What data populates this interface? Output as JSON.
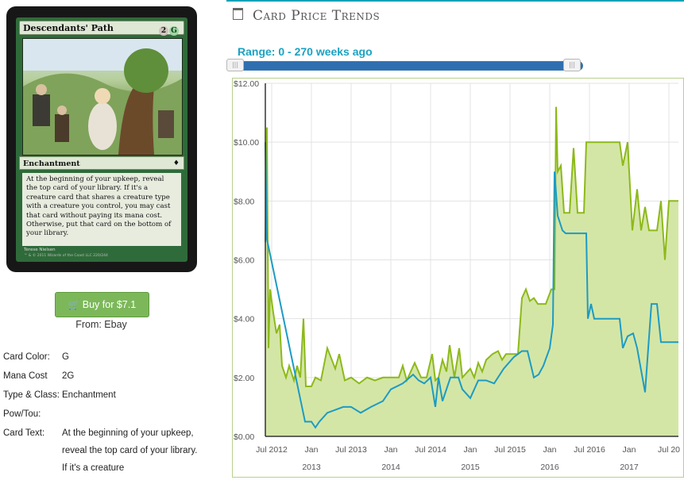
{
  "card": {
    "name": "Descendants' Path",
    "mana_cost_symbols": [
      "2",
      "G"
    ],
    "type_line": "Enchantment",
    "rules_text": "At the beginning of your upkeep, reveal the top card of your library. If it's a creature card that shares a creature type with a creature you control, you may cast that card without paying its mana cost. Otherwise, put that card on the bottom of your library.",
    "artist": "Terese Nielsen",
    "copyright": "™ & © 2011 Wizards of the Coast LLC 220/244"
  },
  "buy": {
    "label": "Buy for $7.1",
    "icon": "shopping-cart-icon",
    "color": "#7cb85a",
    "source": "From: Ebay"
  },
  "properties": [
    {
      "label": "Card Color:",
      "value": "G"
    },
    {
      "label": "Mana Cost",
      "value": "2G"
    },
    {
      "label": "Type & Class:",
      "value": "Enchantment"
    },
    {
      "label": "Pow/Tou:",
      "value": ""
    },
    {
      "label": "Card Text:",
      "value": "At the beginning of your upkeep, reveal the top card of your library. If it's a creature"
    }
  ],
  "trends": {
    "title": "Card Price Trends",
    "icon": "calendar-icon",
    "accent": "#12a3b8",
    "range_label": "Range: 0 - 270 weeks ago",
    "range_start_fraction": 0.0,
    "range_end_fraction": 1.0
  },
  "chart_data": {
    "type": "area",
    "x_unit": "years",
    "ylim": [
      0,
      12
    ],
    "xlim": [
      2012.42,
      2017.62
    ],
    "y_ticks": [
      "$0.00",
      "$2.00",
      "$4.00",
      "$6.00",
      "$8.00",
      "$10.00",
      "$12.00"
    ],
    "y_tick_values": [
      0,
      2,
      4,
      6,
      8,
      10,
      12
    ],
    "x_ticks": [
      {
        "x": 2012.5,
        "label": "Jul 2012"
      },
      {
        "x": 2013.0,
        "label": "Jan"
      },
      {
        "x": 2013.5,
        "label": "Jul 2013"
      },
      {
        "x": 2014.0,
        "label": "Jan"
      },
      {
        "x": 2014.5,
        "label": "Jul 2014"
      },
      {
        "x": 2015.0,
        "label": "Jan"
      },
      {
        "x": 2015.5,
        "label": "Jul 2015"
      },
      {
        "x": 2016.0,
        "label": "Jan"
      },
      {
        "x": 2016.5,
        "label": "Jul 2016"
      },
      {
        "x": 2017.0,
        "label": "Jan"
      },
      {
        "x": 2017.5,
        "label": "Jul 20"
      }
    ],
    "year_labels": [
      {
        "x": 2013.0,
        "label": "2013"
      },
      {
        "x": 2014.0,
        "label": "2014"
      },
      {
        "x": 2015.0,
        "label": "2015"
      },
      {
        "x": 2016.0,
        "label": "2016"
      },
      {
        "x": 2017.0,
        "label": "2017"
      }
    ],
    "grid": true,
    "series": [
      {
        "color": "#8db91a",
        "fill": "#d4e6a6",
        "points": [
          [
            2012.42,
            6.6
          ],
          [
            2012.44,
            10.5
          ],
          [
            2012.46,
            3.0
          ],
          [
            2012.48,
            5.0
          ],
          [
            2012.52,
            4.2
          ],
          [
            2012.56,
            3.5
          ],
          [
            2012.6,
            3.8
          ],
          [
            2012.63,
            2.4
          ],
          [
            2012.68,
            2.0
          ],
          [
            2012.72,
            2.4
          ],
          [
            2012.78,
            1.9
          ],
          [
            2012.82,
            2.4
          ],
          [
            2012.86,
            2.0
          ],
          [
            2012.9,
            4.0
          ],
          [
            2012.93,
            1.7
          ],
          [
            2013.0,
            1.7
          ],
          [
            2013.05,
            2.0
          ],
          [
            2013.12,
            1.9
          ],
          [
            2013.2,
            3.0
          ],
          [
            2013.3,
            2.3
          ],
          [
            2013.35,
            2.8
          ],
          [
            2013.42,
            1.9
          ],
          [
            2013.5,
            2.0
          ],
          [
            2013.6,
            1.8
          ],
          [
            2013.7,
            2.0
          ],
          [
            2013.8,
            1.9
          ],
          [
            2013.9,
            2.0
          ],
          [
            2014.0,
            2.0
          ],
          [
            2014.1,
            2.0
          ],
          [
            2014.15,
            2.4
          ],
          [
            2014.2,
            1.9
          ],
          [
            2014.3,
            2.5
          ],
          [
            2014.38,
            2.0
          ],
          [
            2014.45,
            2.0
          ],
          [
            2014.52,
            2.8
          ],
          [
            2014.56,
            1.9
          ],
          [
            2014.6,
            2.0
          ],
          [
            2014.65,
            2.6
          ],
          [
            2014.7,
            2.2
          ],
          [
            2014.74,
            3.1
          ],
          [
            2014.8,
            2.0
          ],
          [
            2014.86,
            3.0
          ],
          [
            2014.9,
            2.0
          ],
          [
            2015.0,
            2.3
          ],
          [
            2015.05,
            2.0
          ],
          [
            2015.1,
            2.5
          ],
          [
            2015.15,
            2.2
          ],
          [
            2015.2,
            2.6
          ],
          [
            2015.28,
            2.8
          ],
          [
            2015.35,
            2.9
          ],
          [
            2015.4,
            2.6
          ],
          [
            2015.45,
            2.8
          ],
          [
            2015.5,
            2.8
          ],
          [
            2015.6,
            2.8
          ],
          [
            2015.65,
            4.7
          ],
          [
            2015.7,
            5.0
          ],
          [
            2015.75,
            4.6
          ],
          [
            2015.8,
            4.7
          ],
          [
            2015.85,
            4.5
          ],
          [
            2015.9,
            4.5
          ],
          [
            2015.95,
            4.5
          ],
          [
            2016.02,
            5.0
          ],
          [
            2016.06,
            5.0
          ],
          [
            2016.08,
            11.2
          ],
          [
            2016.1,
            9.0
          ],
          [
            2016.14,
            9.2
          ],
          [
            2016.18,
            7.6
          ],
          [
            2016.25,
            7.6
          ],
          [
            2016.3,
            9.8
          ],
          [
            2016.35,
            7.6
          ],
          [
            2016.43,
            7.6
          ],
          [
            2016.46,
            10.0
          ],
          [
            2016.6,
            10.0
          ],
          [
            2016.75,
            10.0
          ],
          [
            2016.88,
            10.0
          ],
          [
            2016.92,
            9.2
          ],
          [
            2016.98,
            10.0
          ],
          [
            2017.04,
            7.0
          ],
          [
            2017.1,
            8.4
          ],
          [
            2017.15,
            7.0
          ],
          [
            2017.2,
            7.8
          ],
          [
            2017.25,
            7.0
          ],
          [
            2017.35,
            7.0
          ],
          [
            2017.4,
            8.0
          ],
          [
            2017.45,
            6.0
          ],
          [
            2017.5,
            8.0
          ],
          [
            2017.62,
            8.0
          ]
        ]
      },
      {
        "color": "#1d9bc4",
        "points": [
          [
            2012.42,
            10.0
          ],
          [
            2012.44,
            6.7
          ],
          [
            2012.92,
            0.5
          ],
          [
            2013.0,
            0.5
          ],
          [
            2013.05,
            0.3
          ],
          [
            2013.1,
            0.5
          ],
          [
            2013.2,
            0.8
          ],
          [
            2013.4,
            1.0
          ],
          [
            2013.5,
            1.0
          ],
          [
            2013.62,
            0.8
          ],
          [
            2013.75,
            1.0
          ],
          [
            2013.9,
            1.2
          ],
          [
            2014.0,
            1.6
          ],
          [
            2014.15,
            1.8
          ],
          [
            2014.28,
            2.1
          ],
          [
            2014.35,
            1.9
          ],
          [
            2014.42,
            1.8
          ],
          [
            2014.5,
            2.0
          ],
          [
            2014.56,
            1.0
          ],
          [
            2014.6,
            2.0
          ],
          [
            2014.65,
            1.2
          ],
          [
            2014.75,
            2.0
          ],
          [
            2014.85,
            2.0
          ],
          [
            2014.9,
            1.6
          ],
          [
            2015.0,
            1.3
          ],
          [
            2015.1,
            1.9
          ],
          [
            2015.2,
            1.9
          ],
          [
            2015.3,
            1.8
          ],
          [
            2015.42,
            2.3
          ],
          [
            2015.55,
            2.7
          ],
          [
            2015.65,
            2.9
          ],
          [
            2015.72,
            2.9
          ],
          [
            2015.8,
            2.0
          ],
          [
            2015.86,
            2.1
          ],
          [
            2015.92,
            2.4
          ],
          [
            2016.0,
            3.0
          ],
          [
            2016.04,
            3.8
          ],
          [
            2016.06,
            9.0
          ],
          [
            2016.1,
            7.5
          ],
          [
            2016.16,
            7.0
          ],
          [
            2016.2,
            6.9
          ],
          [
            2016.3,
            6.9
          ],
          [
            2016.4,
            6.9
          ],
          [
            2016.46,
            6.9
          ],
          [
            2016.48,
            4.0
          ],
          [
            2016.52,
            4.5
          ],
          [
            2016.56,
            4.0
          ],
          [
            2016.7,
            4.0
          ],
          [
            2016.8,
            4.0
          ],
          [
            2016.88,
            4.0
          ],
          [
            2016.92,
            3.0
          ],
          [
            2016.98,
            3.4
          ],
          [
            2017.05,
            3.5
          ],
          [
            2017.1,
            3.0
          ],
          [
            2017.2,
            1.5
          ],
          [
            2017.28,
            4.5
          ],
          [
            2017.35,
            4.5
          ],
          [
            2017.4,
            3.2
          ],
          [
            2017.62,
            3.2
          ]
        ]
      }
    ]
  }
}
